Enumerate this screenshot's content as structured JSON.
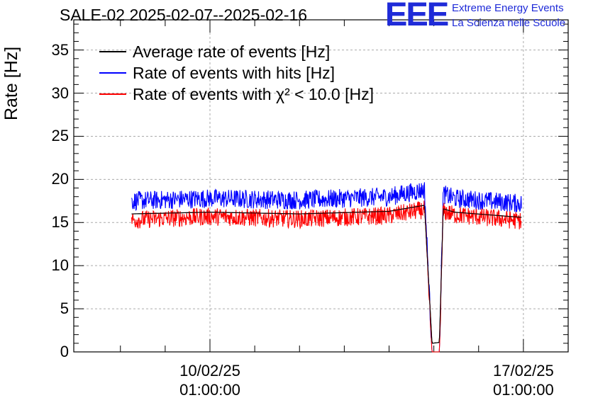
{
  "chart_data": {
    "type": "line",
    "title": "SALE-02 2025-02-07--2025-02-16",
    "xlabel": "",
    "ylabel": "Rate [Hz]",
    "ylim": [
      0,
      38.5
    ],
    "yticks": [
      0,
      5,
      10,
      15,
      20,
      25,
      30,
      35
    ],
    "xticks": [
      {
        "date": "10/02/25",
        "time": "01:00:00"
      },
      {
        "date": "17/02/25",
        "time": "01:00:00"
      }
    ],
    "grid": true,
    "legend_placement": "top-left",
    "series": [
      {
        "name": "Average rate of events [Hz]",
        "color": "#000000",
        "x": [
          "2025-02-08 07:00",
          "2025-02-10 01:00",
          "2025-02-12 01:00",
          "2025-02-14 01:00",
          "2025-02-14 20:00",
          "2025-02-15 00:00",
          "2025-02-15 04:00",
          "2025-02-15 06:00",
          "2025-02-15 12:00",
          "2025-02-17 00:00"
        ],
        "y": [
          16.0,
          16.2,
          16.0,
          16.3,
          17.0,
          1.0,
          1.1,
          16.6,
          16.2,
          15.6
        ]
      },
      {
        "name": "Rate of events with hits [Hz]",
        "color": "#0000ff",
        "x": [
          "2025-02-08 07:00",
          "2025-02-10 01:00",
          "2025-02-12 01:00",
          "2025-02-14 01:00",
          "2025-02-14 20:00",
          "2025-02-15 00:00",
          "2025-02-15 04:00",
          "2025-02-15 06:00",
          "2025-02-15 12:00",
          "2025-02-17 00:00"
        ],
        "y": [
          17.5,
          17.8,
          17.6,
          18.0,
          18.8,
          0,
          0,
          18.3,
          17.8,
          17.2
        ]
      },
      {
        "name": "Rate of events with χ² < 10.0 [Hz]",
        "color": "#ff0000",
        "x": [
          "2025-02-08 07:00",
          "2025-02-10 01:00",
          "2025-02-12 01:00",
          "2025-02-14 01:00",
          "2025-02-14 20:00",
          "2025-02-15 00:00",
          "2025-02-15 04:00",
          "2025-02-15 06:00",
          "2025-02-15 12:00",
          "2025-02-17 00:00"
        ],
        "y": [
          15.3,
          15.7,
          15.4,
          15.8,
          16.5,
          0,
          0,
          16.3,
          15.9,
          15.2
        ]
      }
    ]
  },
  "logo": {
    "mark": "EEE",
    "line1": "Extreme Energy Events",
    "line2": "La Scienza nelle Scuole",
    "color": "#1f2bd8"
  }
}
